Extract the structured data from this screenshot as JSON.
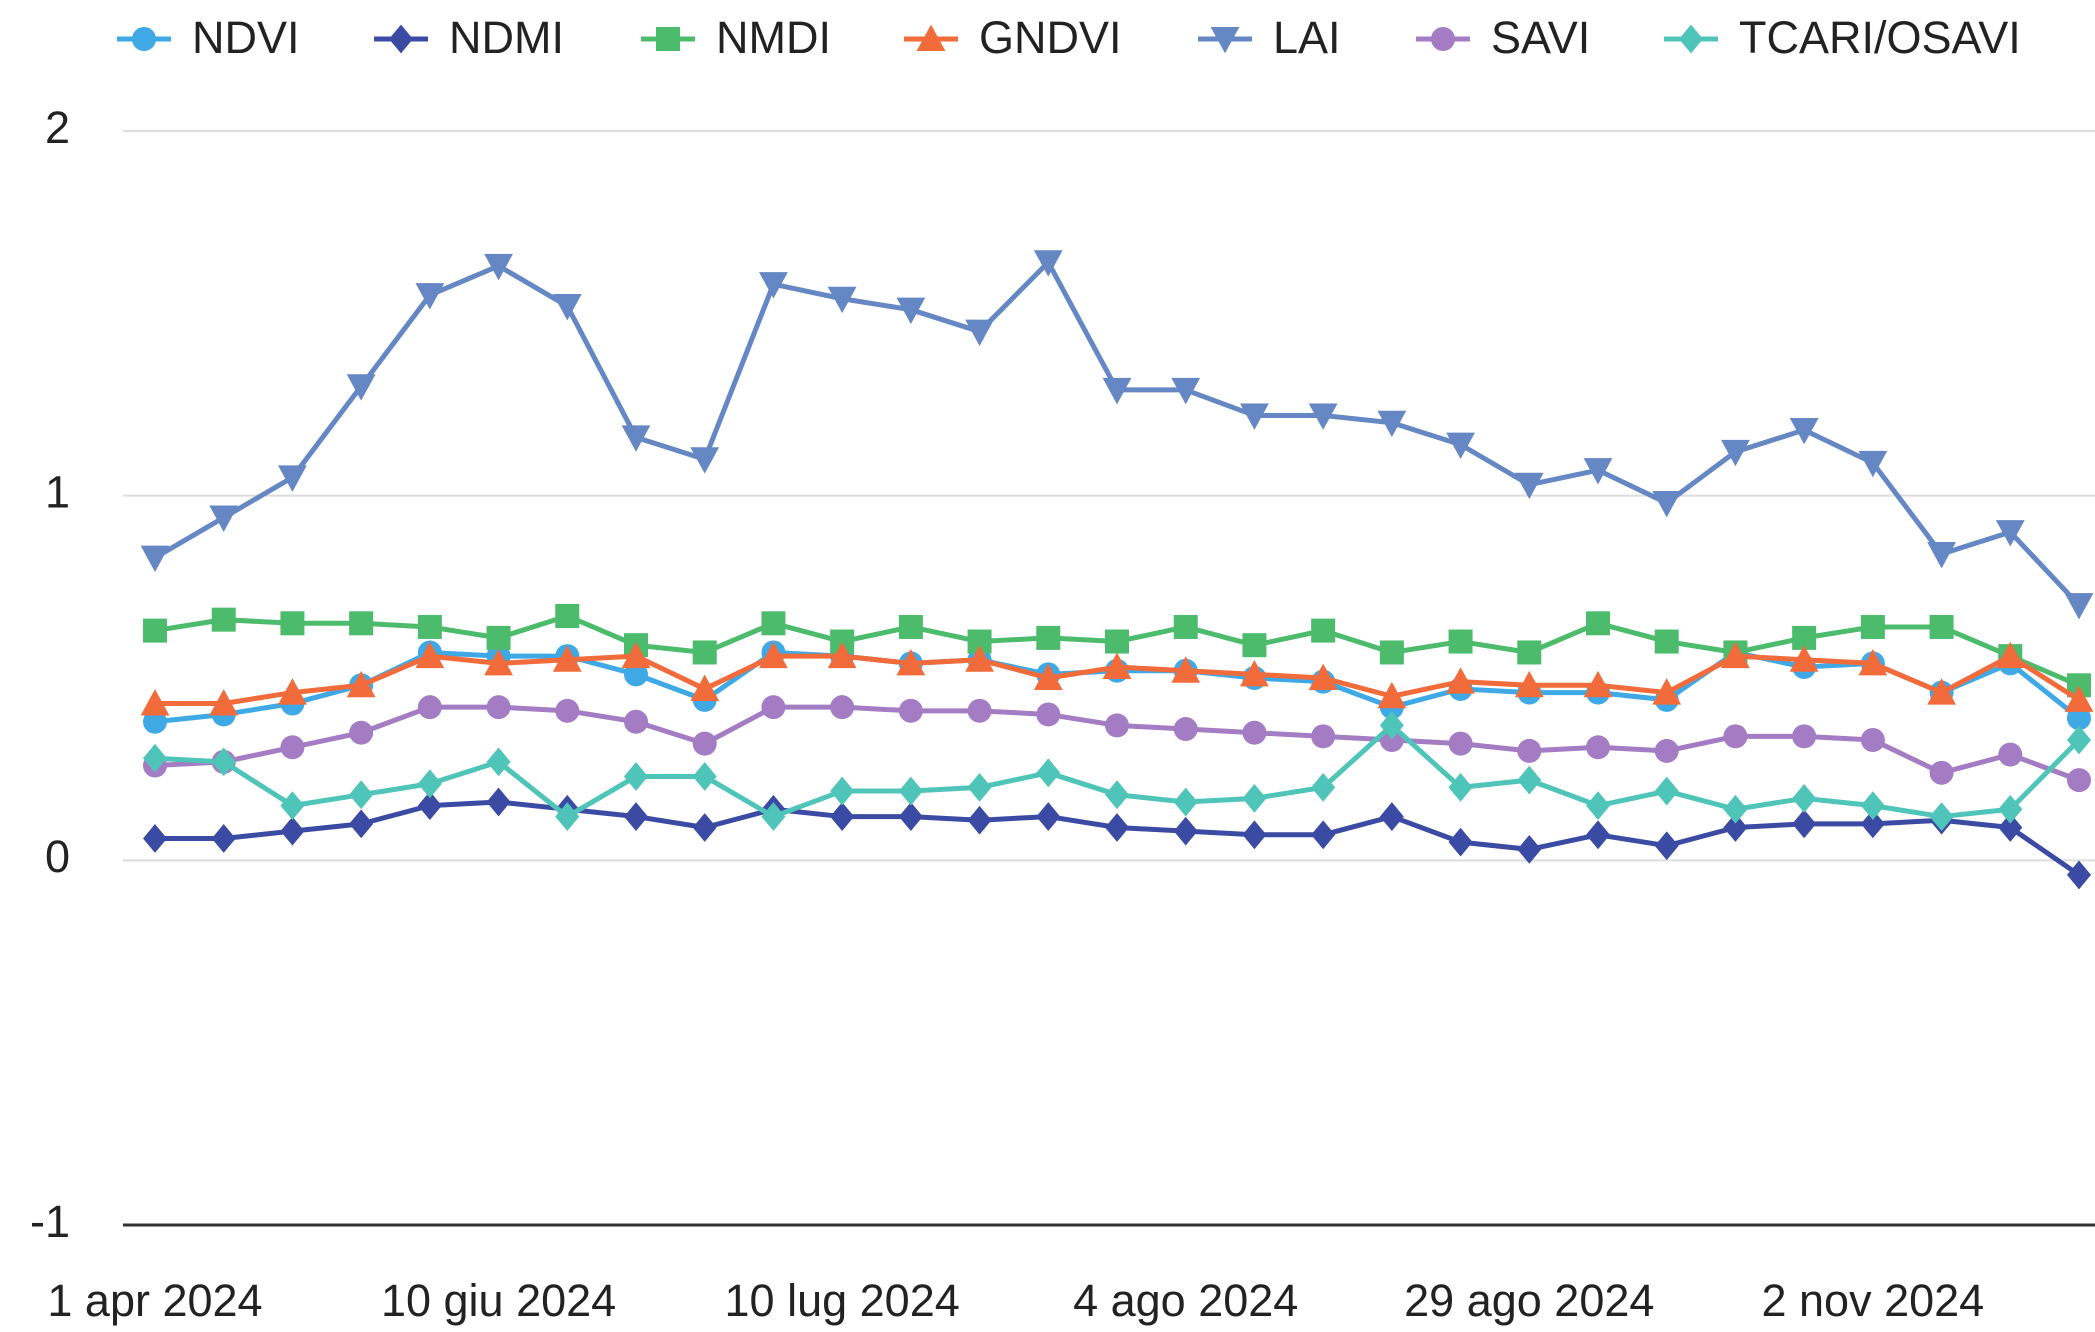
{
  "chart_data": {
    "type": "line",
    "categories": [
      "1 apr 2024",
      null,
      null,
      null,
      null,
      "10 giu 2024",
      null,
      null,
      null,
      null,
      "10 lug 2024",
      null,
      null,
      null,
      null,
      "4 ago 2024",
      null,
      null,
      null,
      null,
      "29 ago 2024",
      null,
      null,
      null,
      null,
      "2 nov 2024",
      null,
      null,
      null
    ],
    "ylim": [
      -1,
      2
    ],
    "yticks": [
      -1,
      0,
      1,
      2
    ],
    "grid": true,
    "legend": "top",
    "series": [
      {
        "name": "NDVI",
        "color": "#3fa9e6",
        "marker": "circle",
        "values": [
          0.38,
          0.4,
          0.43,
          0.48,
          0.57,
          0.56,
          0.56,
          0.51,
          0.44,
          0.57,
          0.56,
          0.54,
          0.55,
          0.51,
          0.52,
          0.52,
          0.5,
          0.49,
          0.42,
          0.47,
          0.46,
          0.46,
          0.44,
          0.57,
          0.53,
          0.54,
          0.46,
          0.54,
          0.39
        ]
      },
      {
        "name": "NDMI",
        "color": "#3b4ba3",
        "marker": "diamond",
        "values": [
          0.06,
          0.06,
          0.08,
          0.1,
          0.15,
          0.16,
          0.14,
          0.12,
          0.09,
          0.14,
          0.12,
          0.12,
          0.11,
          0.12,
          0.09,
          0.08,
          0.07,
          0.07,
          0.12,
          0.05,
          0.03,
          0.07,
          0.04,
          0.09,
          0.1,
          0.1,
          0.11,
          0.09,
          -0.04
        ]
      },
      {
        "name": "NMDI",
        "color": "#4cbb6c",
        "marker": "square",
        "values": [
          0.63,
          0.66,
          0.65,
          0.65,
          0.64,
          0.61,
          0.67,
          0.59,
          0.57,
          0.65,
          0.6,
          0.64,
          0.6,
          0.61,
          0.6,
          0.64,
          0.59,
          0.63,
          0.57,
          0.6,
          0.57,
          0.65,
          0.6,
          0.57,
          0.61,
          0.64,
          0.64,
          0.56,
          0.48
        ]
      },
      {
        "name": "GNDVI",
        "color": "#f26b3a",
        "marker": "triangle",
        "values": [
          0.43,
          0.43,
          0.46,
          0.48,
          0.56,
          0.54,
          0.55,
          0.56,
          0.47,
          0.56,
          0.56,
          0.54,
          0.55,
          0.5,
          0.53,
          0.52,
          0.51,
          0.5,
          0.45,
          0.49,
          0.48,
          0.48,
          0.46,
          0.56,
          0.55,
          0.54,
          0.46,
          0.56,
          0.44
        ]
      },
      {
        "name": "LAI",
        "color": "#6587c4",
        "marker": "triangle-down",
        "values": [
          0.83,
          0.94,
          1.05,
          1.3,
          1.55,
          1.63,
          1.52,
          1.16,
          1.1,
          1.58,
          1.54,
          1.51,
          1.45,
          1.64,
          1.29,
          1.29,
          1.22,
          1.22,
          1.2,
          1.14,
          1.03,
          1.07,
          0.98,
          1.12,
          1.18,
          1.09,
          0.84,
          0.9,
          0.7
        ]
      },
      {
        "name": "SAVI",
        "color": "#a37cc4",
        "marker": "circle",
        "values": [
          0.26,
          0.27,
          0.31,
          0.35,
          0.42,
          0.42,
          0.41,
          0.38,
          0.32,
          0.42,
          0.42,
          0.41,
          0.41,
          0.4,
          0.37,
          0.36,
          0.35,
          0.34,
          0.33,
          0.32,
          0.3,
          0.31,
          0.3,
          0.34,
          0.34,
          0.33,
          0.24,
          0.29,
          0.22
        ]
      },
      {
        "name": "TCARI/OSAVI",
        "color": "#4fc4b8",
        "marker": "diamond",
        "values": [
          0.28,
          0.27,
          0.15,
          0.18,
          0.21,
          0.27,
          0.12,
          0.23,
          0.23,
          0.12,
          0.19,
          0.19,
          0.2,
          0.24,
          0.18,
          0.16,
          0.17,
          0.2,
          0.37,
          0.2,
          0.22,
          0.15,
          0.19,
          0.14,
          0.17,
          0.15,
          0.12,
          0.14,
          0.33
        ]
      }
    ]
  }
}
